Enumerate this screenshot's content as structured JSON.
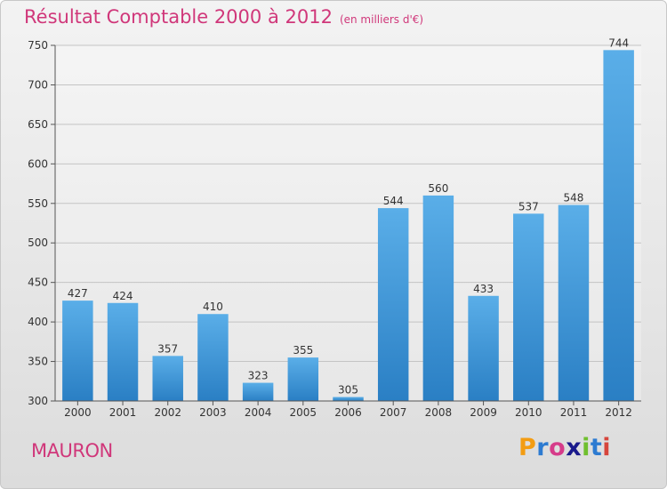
{
  "title": "Résultat Comptable 2000 à 2012",
  "unit_note": "(en milliers d'€)",
  "town_name": "MAURON",
  "logo": {
    "text": "Proxiti",
    "letter_colors": [
      "#f39c12",
      "#2d7bd1",
      "#d63c8a",
      "#1a1a8c",
      "#6fbf2e",
      "#2d7bd1",
      "#d6453c"
    ]
  },
  "colors": {
    "bar_light": "#5aaee8",
    "bar_dark": "#2a7fc4",
    "accent": "#d0377a"
  },
  "chart_data": {
    "type": "bar",
    "categories": [
      "2000",
      "2001",
      "2002",
      "2003",
      "2004",
      "2005",
      "2006",
      "2007",
      "2008",
      "2009",
      "2010",
      "2011",
      "2012"
    ],
    "values": [
      427,
      424,
      357,
      410,
      323,
      355,
      305,
      544,
      560,
      433,
      537,
      548,
      744
    ],
    "ylim": [
      300,
      750
    ],
    "yticks": [
      300,
      350,
      400,
      450,
      500,
      550,
      600,
      650,
      700,
      750
    ],
    "grid": true,
    "xlabel": "",
    "ylabel": ""
  }
}
